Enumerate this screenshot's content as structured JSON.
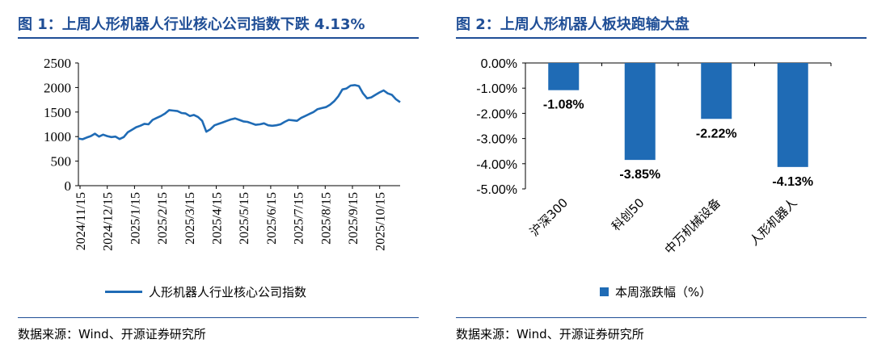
{
  "left": {
    "title": "图 1：上周人形机器人行业核心公司指数下跌 4.13%",
    "source": "数据来源：Wind、开源证券研究所",
    "legend": "人形机器人行业核心公司指数",
    "colors": {
      "line": "#1f6bb5",
      "title": "#1f4e96"
    }
  },
  "right": {
    "title": "图 2：上周人形机器人板块跑输大盘",
    "source": "数据来源：Wind、开源证券研究所",
    "legend": "本周涨跌幅（%）",
    "colors": {
      "bar": "#1f6bb5",
      "title": "#1f4e96"
    }
  },
  "chart_data": [
    {
      "type": "line",
      "title": "人形机器人行业核心公司指数",
      "ylim": [
        0,
        2500
      ],
      "yticks": [
        "0",
        "500",
        "1000",
        "1500",
        "2000",
        "2500"
      ],
      "xticks": [
        "2024/11/15",
        "2024/12/15",
        "2025/1/15",
        "2025/2/15",
        "2025/3/15",
        "2025/4/15",
        "2025/5/15",
        "2025/6/15",
        "2025/7/15",
        "2025/8/15",
        "2025/9/15",
        "2025/10/15"
      ],
      "series": [
        {
          "name": "人形机器人行业核心公司指数",
          "values": [
            960,
            945,
            980,
            1010,
            1060,
            1000,
            1040,
            1010,
            990,
            1000,
            950,
            990,
            1090,
            1140,
            1190,
            1220,
            1260,
            1250,
            1340,
            1380,
            1420,
            1470,
            1540,
            1530,
            1520,
            1480,
            1470,
            1420,
            1440,
            1400,
            1320,
            1100,
            1150,
            1230,
            1260,
            1290,
            1320,
            1350,
            1370,
            1340,
            1310,
            1300,
            1270,
            1240,
            1250,
            1270,
            1230,
            1220,
            1230,
            1250,
            1300,
            1340,
            1330,
            1320,
            1380,
            1420,
            1460,
            1500,
            1560,
            1580,
            1600,
            1650,
            1720,
            1820,
            1960,
            1980,
            2040,
            2050,
            2030,
            1880,
            1780,
            1800,
            1850,
            1900,
            1940,
            1880,
            1850,
            1760,
            1700
          ]
        }
      ]
    },
    {
      "type": "bar",
      "categories": [
        "沪深300",
        "科创50",
        "中万机械设备",
        "人形机器人"
      ],
      "values": [
        -1.08,
        -3.85,
        -2.22,
        -4.13
      ],
      "labels": [
        "-1.08%",
        "-3.85%",
        "-2.22%",
        "-4.13%"
      ],
      "ylim": [
        -5,
        0
      ],
      "yticks": [
        "0.00%",
        "-1.00%",
        "-2.00%",
        "-3.00%",
        "-4.00%",
        "-5.00%"
      ],
      "series_name": "本周涨跌幅（%）"
    }
  ]
}
